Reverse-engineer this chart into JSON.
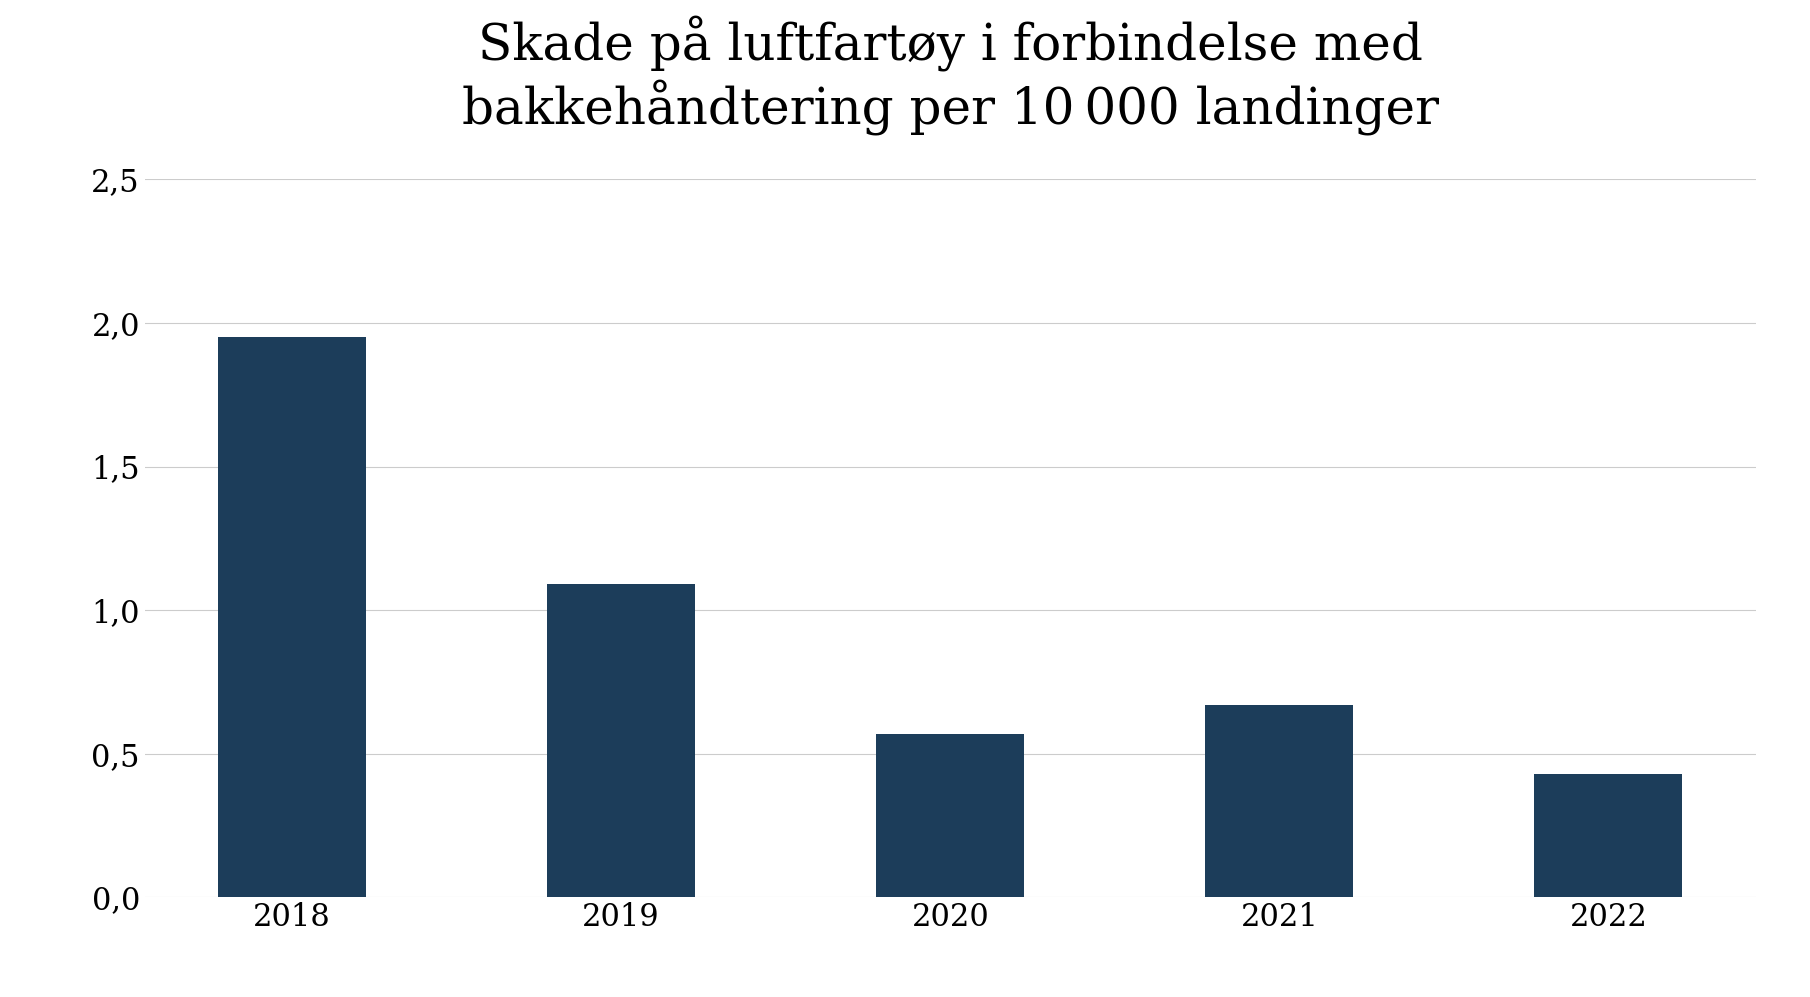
{
  "title_line1": "Skade på luftfartøy i forbindelse med",
  "title_line2": "bakkehåndtering per 10 000 landinger",
  "categories": [
    "2018",
    "2019",
    "2020",
    "2021",
    "2022"
  ],
  "values": [
    1.95,
    1.09,
    0.57,
    0.67,
    0.43
  ],
  "bar_color": "#1c3d5a",
  "background_color": "#ffffff",
  "ylim": [
    0,
    2.5
  ],
  "yticks": [
    0.0,
    0.5,
    1.0,
    1.5,
    2.0,
    2.5
  ],
  "ytick_labels": [
    "0,0",
    "0,5",
    "1,0",
    "1,5",
    "2,0",
    "2,5"
  ],
  "title_fontsize": 36,
  "tick_fontsize": 22,
  "grid_color": "#cccccc",
  "bar_width": 0.45
}
